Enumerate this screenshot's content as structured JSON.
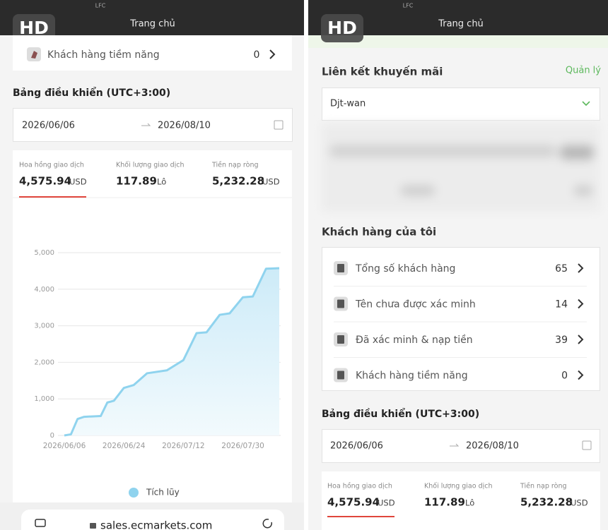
{
  "left_screen": {
    "carrier": "LFC",
    "page_title": "Trang chủ",
    "badge": "HD",
    "row": {
      "label": "Khách hàng tiềm năng",
      "count": 0
    },
    "dashboard": {
      "title": "Bảng điều khiển (UTC+3:00)",
      "start_date": "2026/06/06",
      "end_date": "2026/08/10",
      "stats": [
        {
          "label": "Hoa hồng giao dịch",
          "value": "4,575.94",
          "unit": "USD"
        },
        {
          "label": "Khối lượng giao dịch",
          "value": "117.89",
          "unit": "Lô"
        },
        {
          "label": "Tiền nạp ròng",
          "value": "5,232.28",
          "unit": "USD"
        }
      ]
    },
    "url": "sales.ecmarkets.com"
  },
  "chart_data": {
    "type": "area",
    "x": [
      "2026/06/06",
      "2026/06/08",
      "2026/06/10",
      "2026/06/12",
      "2026/06/17",
      "2026/06/19",
      "2026/06/21",
      "2026/06/24",
      "2026/06/27",
      "2026/07/01",
      "2026/07/07",
      "2026/07/12",
      "2026/07/16",
      "2026/07/19",
      "2026/07/23",
      "2026/07/26",
      "2026/07/30",
      "2026/08/02",
      "2026/08/06",
      "2026/08/10"
    ],
    "series": [
      {
        "name": "Tích lũy",
        "color": "#8fd3ee",
        "values": [
          0,
          30,
          450,
          510,
          530,
          900,
          950,
          1300,
          1380,
          1700,
          1780,
          2060,
          2800,
          2820,
          3300,
          3340,
          3780,
          3800,
          4560,
          4576
        ]
      }
    ],
    "xlim": [
      "2026/06/06",
      "2026/08/10"
    ],
    "xticks": [
      "2026/06/06",
      "2026/06/24",
      "2026/07/12",
      "2026/07/30"
    ],
    "ylim": [
      0,
      5000
    ],
    "yticks": [
      0,
      {
        "value": 1000,
        "label": "1,000"
      },
      {
        "value": 2000,
        "label": "2,000"
      },
      {
        "value": 3000,
        "label": "3,000"
      },
      {
        "value": 4000,
        "label": "4,000"
      },
      {
        "value": 5000,
        "label": "5,000"
      }
    ],
    "grid": true
  },
  "right_screen": {
    "carrier": "LFC",
    "page_title": "Trang chủ",
    "badge": "HD",
    "promo": {
      "title": "Liên kết khuyến mãi",
      "action": "Quản lý",
      "selected": "Djt-wan"
    },
    "customers": {
      "title": "Khách hàng của tôi",
      "rows": [
        {
          "label": "Tổng số khách hàng",
          "count": 65
        },
        {
          "label": "Tên chưa được xác minh",
          "count": 14
        },
        {
          "label": "Đã xác minh & nạp tiền",
          "count": 39
        },
        {
          "label": "Khách hàng tiềm năng",
          "count": 0
        }
      ]
    },
    "dashboard": {
      "title": "Bảng điều khiển (UTC+3:00)",
      "start_date": "2026/06/06",
      "end_date": "2026/08/10",
      "stats": [
        {
          "label": "Hoa hồng giao dịch",
          "value": "4,575.94",
          "unit": "USD"
        },
        {
          "label": "Khối lượng giao dịch",
          "value": "117.89",
          "unit": "Lô"
        },
        {
          "label": "Tiền nạp ròng",
          "value": "5,232.28",
          "unit": "USD"
        }
      ]
    }
  }
}
